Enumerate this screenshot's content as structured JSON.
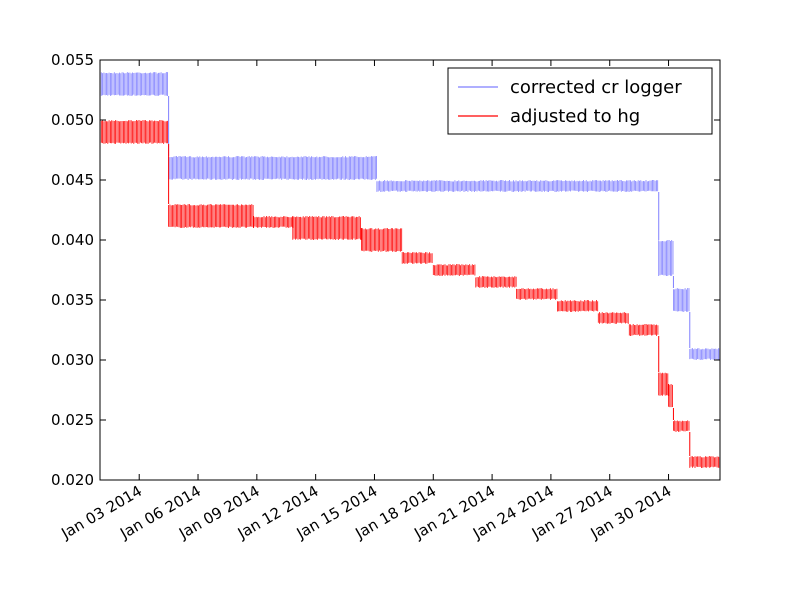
{
  "chart_data": {
    "type": "line",
    "title": "",
    "xlabel": "",
    "ylabel": "",
    "xlim": [
      "2014-01-01",
      "2014-02-01T15:00"
    ],
    "ylim": [
      0.02,
      0.055
    ],
    "grid": false,
    "legend_position": "top-right",
    "y_ticks": [
      "0.020",
      "0.025",
      "0.030",
      "0.035",
      "0.040",
      "0.045",
      "0.050",
      "0.055"
    ],
    "x_ticks": [
      "Jan 03 2014",
      "Jan 06 2014",
      "Jan 09 2014",
      "Jan 12 2014",
      "Jan 15 2014",
      "Jan 18 2014",
      "Jan 21 2014",
      "Jan 24 2014",
      "Jan 27 2014",
      "Jan 30 2014"
    ],
    "series": [
      {
        "name": "corrected cr logger",
        "color": "#7f7fff",
        "segments": [
          {
            "from": "2014-01-01",
            "to": "2014-01-04T12:00",
            "low": 0.052,
            "high": 0.054
          },
          {
            "from": "2014-01-04T12:00",
            "to": "2014-01-15T03:00",
            "low": 0.045,
            "high": 0.047
          },
          {
            "from": "2014-01-15T03:00",
            "to": "2014-01-29T12:00",
            "low": 0.044,
            "high": 0.045
          },
          {
            "from": "2014-01-29T12:00",
            "to": "2014-01-30T06:00",
            "low": 0.037,
            "high": 0.04
          },
          {
            "from": "2014-01-30T06:00",
            "to": "2014-01-31T02:00",
            "low": 0.034,
            "high": 0.036
          },
          {
            "from": "2014-01-31T02:00",
            "to": "2014-02-01T15:00",
            "low": 0.03,
            "high": 0.031
          }
        ]
      },
      {
        "name": "adjusted to hg",
        "color": "#ff0000",
        "segments": [
          {
            "from": "2014-01-01",
            "to": "2014-01-04T12:00",
            "low": 0.048,
            "high": 0.05
          },
          {
            "from": "2014-01-04T12:00",
            "to": "2014-01-08T20:00",
            "low": 0.041,
            "high": 0.043
          },
          {
            "from": "2014-01-08T20:00",
            "to": "2014-01-10T20:00",
            "low": 0.041,
            "high": 0.042
          },
          {
            "from": "2014-01-10T20:00",
            "to": "2014-01-14T08:00",
            "low": 0.04,
            "high": 0.042
          },
          {
            "from": "2014-01-14T08:00",
            "to": "2014-01-16T10:00",
            "low": 0.039,
            "high": 0.041
          },
          {
            "from": "2014-01-16T10:00",
            "to": "2014-01-18T00:00",
            "low": 0.038,
            "high": 0.039
          },
          {
            "from": "2014-01-18T00:00",
            "to": "2014-01-20T04:00",
            "low": 0.037,
            "high": 0.038
          },
          {
            "from": "2014-01-20T04:00",
            "to": "2014-01-22T06:00",
            "low": 0.036,
            "high": 0.037
          },
          {
            "from": "2014-01-22T06:00",
            "to": "2014-01-24T08:00",
            "low": 0.035,
            "high": 0.036
          },
          {
            "from": "2014-01-24T08:00",
            "to": "2014-01-26T10:00",
            "low": 0.034,
            "high": 0.035
          },
          {
            "from": "2014-01-26T10:00",
            "to": "2014-01-28T00:00",
            "low": 0.033,
            "high": 0.034
          },
          {
            "from": "2014-01-28T00:00",
            "to": "2014-01-29T12:00",
            "low": 0.032,
            "high": 0.033
          },
          {
            "from": "2014-01-29T12:00",
            "to": "2014-01-30T00:00",
            "low": 0.027,
            "high": 0.029
          },
          {
            "from": "2014-01-30T00:00",
            "to": "2014-01-30T06:00",
            "low": 0.026,
            "high": 0.028
          },
          {
            "from": "2014-01-30T06:00",
            "to": "2014-01-31T02:00",
            "low": 0.024,
            "high": 0.025
          },
          {
            "from": "2014-01-31T02:00",
            "to": "2014-02-01T15:00",
            "low": 0.021,
            "high": 0.022
          }
        ]
      }
    ]
  }
}
